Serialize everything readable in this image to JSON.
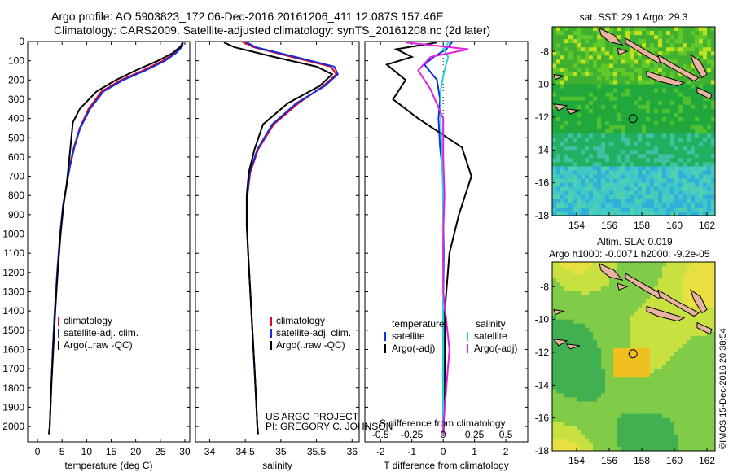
{
  "header": {
    "title_line1": "Argo profile: AO 5903823_172 06-Dec-2016 20161206_411 12.087S 157.46E",
    "title_line2": "Climatology: CARS2009. Satellite-adjusted climatology: synTS_20161208.nc (2d later)"
  },
  "stamp": "©IMOS 15-Dec-2016 20:38:54",
  "colors": {
    "climatology": "#e8001e",
    "satellite": "#1030e0",
    "argo": "#000000",
    "satellite_sal": "#20d8e0",
    "argo_sal_adj": "#e020e0"
  },
  "chart_data": [
    {
      "id": "temperature",
      "type": "line",
      "xlabel": "temperature (deg C)",
      "ylabel": "",
      "xlim": [
        -2,
        31
      ],
      "ylim": [
        2080,
        0
      ],
      "y_inverted": true,
      "x_ticks": [
        0,
        5,
        10,
        15,
        20,
        25,
        30
      ],
      "y_ticks": [
        0,
        100,
        200,
        300,
        400,
        500,
        600,
        700,
        800,
        900,
        1000,
        1100,
        1200,
        1300,
        1400,
        1500,
        1600,
        1700,
        1800,
        1900,
        2000
      ],
      "legend": [
        "climatology",
        "satellite-adj. clim.",
        "Argo(..raw -QC)"
      ],
      "series": [
        {
          "name": "climatology",
          "color": "#e8001e",
          "x": [
            29.6,
            29.4,
            28.0,
            25.5,
            21.5,
            17.0,
            13.0,
            10.4,
            8.6,
            7.4,
            6.5,
            5.9,
            5.2,
            4.6,
            4.0,
            3.5,
            3.1,
            2.8,
            2.5,
            2.3
          ],
          "y": [
            0,
            25,
            60,
            100,
            150,
            200,
            260,
            350,
            450,
            550,
            650,
            750,
            850,
            1000,
            1200,
            1400,
            1600,
            1800,
            2000,
            2040
          ]
        },
        {
          "name": "satellite-adj. clim.",
          "color": "#1030e0",
          "x": [
            29.6,
            29.5,
            28.2,
            26.0,
            22.0,
            17.5,
            13.4,
            10.7,
            8.7,
            7.5,
            6.6,
            5.9,
            5.2,
            4.6,
            4.0,
            3.5,
            3.1,
            2.8,
            2.5,
            2.3
          ],
          "y": [
            0,
            25,
            60,
            100,
            150,
            200,
            260,
            350,
            450,
            550,
            650,
            750,
            850,
            1000,
            1200,
            1400,
            1600,
            1800,
            2000,
            2040
          ]
        },
        {
          "name": "Argo(..raw -QC)",
          "color": "#000000",
          "x": [
            29.5,
            29.2,
            27.5,
            24.5,
            20.0,
            16.0,
            12.0,
            8.6,
            7.2,
            6.7,
            6.3,
            5.9,
            5.3,
            4.7,
            4.1,
            3.6,
            3.2,
            2.8,
            2.5,
            2.4
          ],
          "y": [
            5,
            25,
            60,
            100,
            150,
            200,
            260,
            350,
            420,
            550,
            650,
            750,
            850,
            1000,
            1200,
            1400,
            1600,
            1800,
            2000,
            2040
          ]
        }
      ]
    },
    {
      "id": "salinity",
      "type": "line",
      "xlabel": "salinity",
      "ylabel": "",
      "xlim": [
        33.8,
        36.1
      ],
      "ylim": [
        2080,
        0
      ],
      "y_inverted": true,
      "x_ticks": [
        34,
        34.5,
        35,
        35.5,
        36
      ],
      "legend": [
        "climatology",
        "satellite-adj. clim.",
        "Argo(..raw -QC)"
      ],
      "annotation": [
        "US ARGO PROJECT",
        "PI: GREGORY C. JOHNSON"
      ],
      "series": [
        {
          "name": "climatology",
          "color": "#e8001e",
          "x": [
            34.45,
            34.62,
            35.15,
            35.7,
            35.78,
            35.6,
            35.25,
            34.9,
            34.68,
            34.57,
            34.53,
            34.52,
            34.54,
            34.57,
            34.6,
            34.63,
            34.65,
            34.67,
            34.68
          ],
          "y": [
            0,
            30,
            80,
            130,
            170,
            230,
            320,
            430,
            560,
            680,
            800,
            950,
            1100,
            1300,
            1500,
            1700,
            1850,
            2000,
            2040
          ]
        },
        {
          "name": "satellite-adj. clim.",
          "color": "#1030e0",
          "x": [
            34.5,
            34.65,
            35.2,
            35.75,
            35.8,
            35.62,
            35.22,
            34.88,
            34.67,
            34.56,
            34.53,
            34.52,
            34.54,
            34.57,
            34.6,
            34.63,
            34.65,
            34.67,
            34.68
          ],
          "y": [
            0,
            30,
            80,
            130,
            170,
            230,
            320,
            430,
            560,
            680,
            800,
            950,
            1100,
            1300,
            1500,
            1700,
            1850,
            2000,
            2040
          ]
        },
        {
          "name": "Argo(..raw -QC)",
          "color": "#000000",
          "x": [
            34.2,
            34.35,
            34.9,
            35.5,
            35.72,
            35.55,
            35.1,
            34.75,
            34.63,
            34.55,
            34.52,
            34.52,
            34.54,
            34.57,
            34.6,
            34.63,
            34.65,
            34.67,
            34.68
          ],
          "y": [
            5,
            30,
            80,
            130,
            170,
            230,
            320,
            430,
            560,
            680,
            800,
            950,
            1100,
            1300,
            1500,
            1700,
            1850,
            2000,
            2040
          ]
        }
      ]
    },
    {
      "id": "differences",
      "type": "line",
      "xlabel": "T difference from climatology",
      "xlabel_top": "S difference from climatology",
      "xlim": [
        -2.5,
        2.7
      ],
      "ylim": [
        2080,
        0
      ],
      "y_inverted": true,
      "x_ticks": [
        -2,
        -1,
        0,
        1,
        2
      ],
      "x_ticks_top": [
        -0.5,
        -0.25,
        0,
        0.25,
        0.5
      ],
      "legend_left_title": "temperature",
      "legend_right_title": "salinity",
      "legend_left": [
        "satellite",
        "Argo(-adj)"
      ],
      "legend_right": [
        "satellite",
        "Argo(-adj)"
      ],
      "series": [
        {
          "name": "T satellite",
          "color": "#1030e0",
          "x": [
            0.3,
            0.1,
            -0.3,
            -0.6,
            -0.2,
            -0.1,
            -0.15,
            -0.1,
            0.0,
            0.0,
            0.02,
            0.0,
            0.0,
            0.0,
            0.0
          ],
          "y": [
            0,
            40,
            80,
            120,
            200,
            300,
            400,
            550,
            700,
            900,
            1100,
            1400,
            1700,
            2000,
            2040
          ]
        },
        {
          "name": "T Argo(-adj)",
          "color": "#000000",
          "x": [
            -0.2,
            -1.5,
            -1.0,
            -1.8,
            -1.2,
            -1.6,
            -0.8,
            0.6,
            0.9,
            0.5,
            0.2,
            0.05,
            0.05,
            0.02,
            0.0
          ],
          "y": [
            5,
            40,
            80,
            120,
            200,
            300,
            400,
            550,
            700,
            900,
            1100,
            1400,
            1700,
            2000,
            2040
          ]
        },
        {
          "name": "S satellite",
          "color": "#20d8e0",
          "x": [
            0.05,
            0.0,
            0.04,
            0.01,
            -0.02,
            -0.02,
            -0.01,
            0.0,
            0.0,
            0.0,
            0.0,
            0.0,
            0.0
          ],
          "y": [
            0,
            40,
            80,
            150,
            250,
            400,
            600,
            800,
            1000,
            1300,
            1600,
            2000,
            2040
          ]
        },
        {
          "name": "S Argo(-adj)",
          "color": "#e020e0",
          "x": [
            -0.3,
            0.2,
            -0.1,
            -0.2,
            -0.1,
            0.0,
            0.0,
            0.01,
            0.0,
            0.0,
            0.05,
            0.0,
            0.0
          ],
          "y": [
            5,
            40,
            80,
            150,
            250,
            400,
            600,
            800,
            1000,
            1300,
            1600,
            2000,
            2040
          ]
        }
      ]
    },
    {
      "id": "sst_map",
      "type": "heatmap",
      "title": "sat. SST: 29.1 Argo: 29.3",
      "xlim": [
        152.5,
        162.5
      ],
      "ylim": [
        -18,
        -6.5
      ],
      "x_ticks": [
        154,
        156,
        158,
        160,
        162
      ],
      "y_ticks": [
        -8,
        -10,
        -12,
        -14,
        -16,
        -18
      ],
      "marker": {
        "lon": 157.46,
        "lat": -12.087
      }
    },
    {
      "id": "sla_map",
      "type": "heatmap",
      "title": "Altim. SLA: 0.019",
      "subtitle": "Argo h1000: -0.0071 h2000: -9.2e-05",
      "xlim": [
        152.5,
        162.5
      ],
      "ylim": [
        -18,
        -6.5
      ],
      "x_ticks": [
        154,
        156,
        158,
        160,
        162
      ],
      "y_ticks": [
        -8,
        -10,
        -12,
        -14,
        -16,
        -18
      ],
      "marker": {
        "lon": 157.46,
        "lat": -12.087
      }
    }
  ]
}
